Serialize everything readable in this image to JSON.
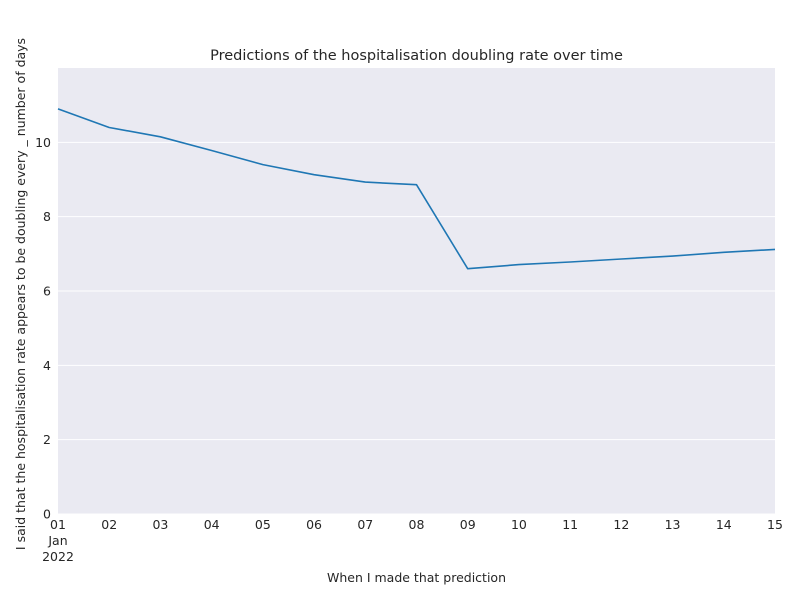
{
  "chart_data": {
    "type": "line",
    "title": "Predictions of the hospitalisation doubling rate over time",
    "xlabel": "When I made that prediction",
    "ylabel": "I said that the hospitalisation rate appears to be doubling every _ number of days",
    "x": [
      "2022-01-01",
      "2022-01-02",
      "2022-01-03",
      "2022-01-04",
      "2022-01-05",
      "2022-01-06",
      "2022-01-07",
      "2022-01-08",
      "2022-01-09",
      "2022-01-10",
      "2022-01-11",
      "2022-01-12",
      "2022-01-13",
      "2022-01-14",
      "2022-01-15"
    ],
    "x_tick_labels": [
      "01",
      "02",
      "03",
      "04",
      "05",
      "06",
      "07",
      "08",
      "09",
      "10",
      "11",
      "12",
      "13",
      "14",
      "15"
    ],
    "x_month_label": "Jan",
    "x_year_label": "2022",
    "series": [
      {
        "values": [
          10.9,
          10.4,
          10.15,
          9.78,
          9.4,
          9.13,
          8.93,
          8.86,
          6.6,
          6.71,
          6.78,
          6.86,
          6.94,
          7.04,
          7.12
        ],
        "color": "#1f77b4"
      }
    ],
    "ylim": [
      0,
      12
    ],
    "y_ticks": [
      0,
      2,
      4,
      6,
      8,
      10
    ],
    "grid": true,
    "background": "#eaeaf2"
  }
}
